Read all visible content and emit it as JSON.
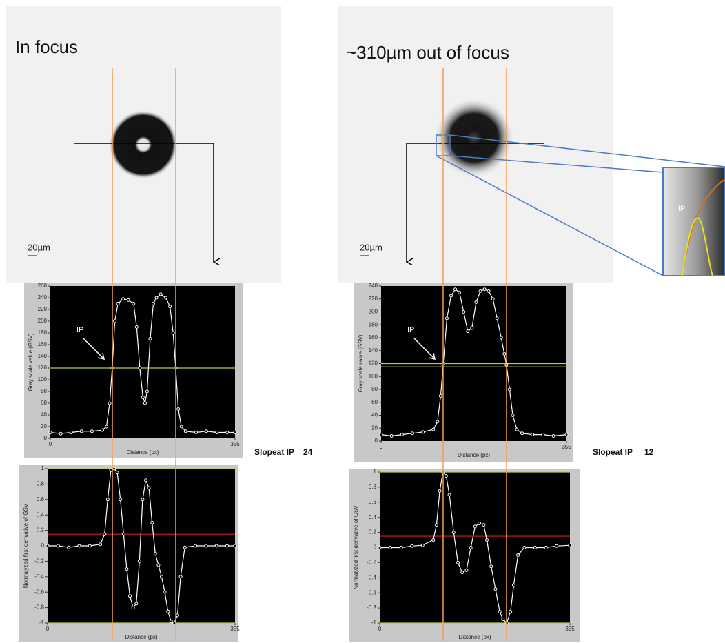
{
  "images": [
    {
      "title": "In focus",
      "scale": "20µm"
    },
    {
      "title": "~310µm out of focus",
      "scale": "20µm"
    }
  ],
  "zoom_label": "IP",
  "slopes": [
    {
      "label": "Slopeat IP",
      "value": 24
    },
    {
      "label": "Slopeat IP",
      "value": 12
    }
  ],
  "chart_data": [
    {
      "type": "line",
      "ylabel": "Gray scale value (GSV)",
      "xlabel": "Distance (px)",
      "annotation": "IP",
      "color": "#ffffff",
      "xlim": [
        0,
        355
      ],
      "xticks": [
        0,
        355
      ],
      "ylim": [
        0,
        260
      ],
      "yticks": [
        0,
        20,
        40,
        60,
        80,
        100,
        120,
        140,
        160,
        180,
        200,
        220,
        240,
        260
      ],
      "hlines": [
        {
          "value": 120,
          "color": "#c8c84a"
        }
      ],
      "x": [
        0,
        20,
        40,
        60,
        80,
        100,
        108,
        114,
        119,
        124,
        130,
        140,
        150,
        160,
        166,
        172,
        178,
        182,
        186,
        192,
        198,
        204,
        212,
        222,
        230,
        236,
        241,
        246,
        252,
        260,
        280,
        300,
        320,
        340,
        355
      ],
      "values": [
        10,
        8,
        10,
        12,
        12,
        14,
        20,
        60,
        120,
        200,
        230,
        238,
        236,
        230,
        190,
        120,
        70,
        60,
        80,
        170,
        230,
        240,
        246,
        240,
        225,
        180,
        120,
        50,
        20,
        12,
        10,
        12,
        10,
        10,
        10
      ]
    },
    {
      "type": "line",
      "ylabel": "Normalyzed first derivative of GSV",
      "xlabel": "Distance (px)",
      "color": "#ffffff",
      "xlim": [
        0,
        355
      ],
      "xticks": [
        0,
        355
      ],
      "ylim": [
        -1,
        1
      ],
      "yticks": [
        -1,
        -0.8,
        -0.6,
        -0.4,
        -0.2,
        0,
        0.2,
        0.4,
        0.6,
        0.8,
        1
      ],
      "hlines": [
        {
          "value": 0.15,
          "color": "#d02020"
        },
        {
          "value": 1,
          "color": "#c8c84a"
        },
        {
          "value": -1,
          "color": "#c8c84a"
        }
      ],
      "x": [
        0,
        20,
        40,
        60,
        80,
        100,
        108,
        114,
        120,
        126,
        132,
        138,
        144,
        150,
        156,
        162,
        168,
        174,
        180,
        186,
        192,
        198,
        204,
        210,
        216,
        222,
        228,
        234,
        240,
        246,
        252,
        260,
        280,
        300,
        320,
        340,
        355
      ],
      "values": [
        0,
        0,
        -0.02,
        0,
        0,
        0.02,
        0.15,
        0.6,
        0.98,
        1,
        0.95,
        0.6,
        0.15,
        -0.3,
        -0.65,
        -0.8,
        -0.75,
        -0.2,
        0.6,
        0.85,
        0.75,
        0.3,
        -0.1,
        -0.25,
        -0.4,
        -0.6,
        -0.85,
        -0.98,
        -1,
        -0.9,
        -0.4,
        -0.02,
        0,
        0,
        0,
        0,
        0
      ]
    },
    {
      "type": "line",
      "ylabel": "Gray scale value (GSV)",
      "xlabel": "Distance (px)",
      "annotation": "IP",
      "color": "#ffffff",
      "xlim": [
        0,
        355
      ],
      "xticks": [
        0,
        355
      ],
      "ylim": [
        0,
        240
      ],
      "yticks": [
        0,
        20,
        40,
        60,
        80,
        100,
        120,
        140,
        160,
        180,
        200,
        220,
        240
      ],
      "hlines": [
        {
          "value": 120,
          "color": "#c8c84a"
        },
        {
          "value": 115,
          "color": "#c8c84a"
        }
      ],
      "x": [
        0,
        20,
        40,
        60,
        80,
        100,
        108,
        114,
        119,
        126,
        134,
        142,
        150,
        158,
        166,
        174,
        182,
        190,
        198,
        206,
        214,
        222,
        230,
        236,
        240,
        246,
        252,
        260,
        270,
        290,
        310,
        330,
        355
      ],
      "values": [
        10,
        8,
        10,
        12,
        14,
        18,
        30,
        70,
        120,
        190,
        225,
        235,
        230,
        200,
        170,
        175,
        215,
        232,
        235,
        232,
        220,
        190,
        160,
        135,
        118,
        80,
        40,
        18,
        12,
        10,
        10,
        8,
        10
      ]
    },
    {
      "type": "line",
      "ylabel": "Normalyzed first derivative of GSV",
      "xlabel": "Distance (px)",
      "color": "#ffffff",
      "xlim": [
        0,
        355
      ],
      "xticks": [
        0,
        355
      ],
      "ylim": [
        -1,
        1
      ],
      "yticks": [
        -1,
        -0.8,
        -0.6,
        -0.4,
        -0.2,
        0,
        0.2,
        0.4,
        0.6,
        0.8,
        1
      ],
      "hlines": [
        {
          "value": 0.15,
          "color": "#d02020"
        },
        {
          "value": 1,
          "color": "#c8c84a"
        },
        {
          "value": -1,
          "color": "#c8c84a"
        }
      ],
      "x": [
        0,
        20,
        40,
        60,
        80,
        100,
        106,
        112,
        118,
        124,
        130,
        138,
        146,
        154,
        162,
        170,
        178,
        186,
        194,
        200,
        208,
        216,
        224,
        230,
        237,
        244,
        250,
        258,
        270,
        290,
        310,
        330,
        355
      ],
      "values": [
        0,
        0,
        0,
        0.02,
        0.03,
        0.1,
        0.3,
        0.75,
        1,
        0.95,
        0.7,
        0.2,
        -0.2,
        -0.33,
        -0.3,
        0,
        0.28,
        0.32,
        0.3,
        0.1,
        -0.25,
        -0.55,
        -0.85,
        -0.95,
        -1,
        -0.85,
        -0.5,
        -0.1,
        0,
        0,
        0,
        0.02,
        0.03
      ]
    }
  ]
}
